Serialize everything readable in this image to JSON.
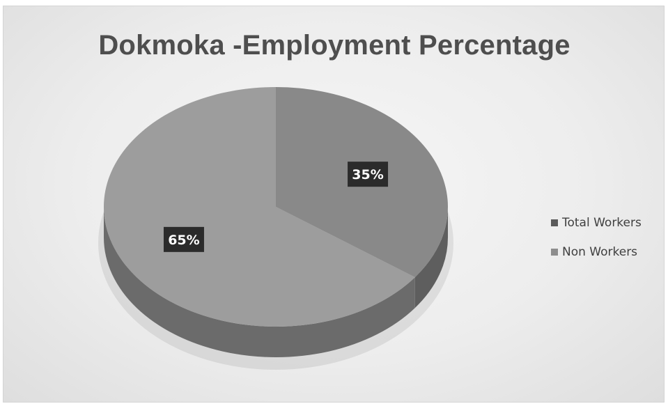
{
  "chart_data": {
    "type": "pie",
    "title": "Dokmoka -Employment Percentage",
    "slices": [
      {
        "label": "Total Workers",
        "value": 35,
        "data_label": "35%"
      },
      {
        "label": "Non Workers",
        "value": 65,
        "data_label": "65%"
      }
    ],
    "legend_position": "right",
    "colors": {
      "total_workers_top": "#898989",
      "total_workers_side": "#5e5e5e",
      "non_workers_top": "#9d9d9d",
      "non_workers_side": "#6b6b6b",
      "label_box": "#2b2b2b",
      "label_text": "#ffffff",
      "legend_total_workers": "#5a5a5a",
      "legend_non_workers": "#8d8d8d"
    }
  }
}
